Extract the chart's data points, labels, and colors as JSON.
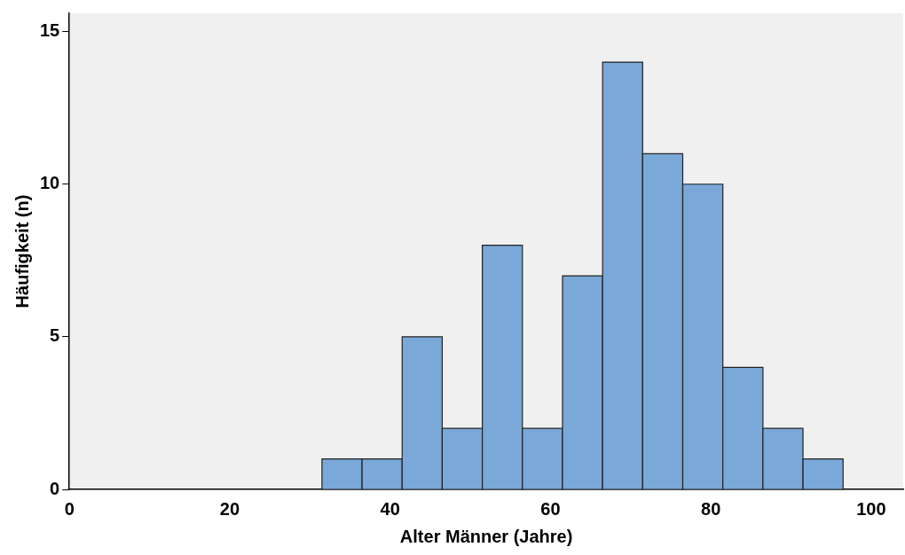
{
  "chart_data": {
    "type": "histogram",
    "xlabel": "Alter Männer (Jahre)",
    "ylabel": "Häufigkeit (n)",
    "bins": [
      31.5,
      36.5,
      41.5,
      46.5,
      51.5,
      56.5,
      61.5,
      66.5,
      71.5,
      76.5,
      81.5,
      86.5,
      91.5,
      96.5
    ],
    "values": [
      1,
      1,
      5,
      2,
      8,
      2,
      7,
      14,
      11,
      10,
      4,
      2,
      1
    ],
    "color": "#7aa8d8",
    "xlim": [
      0,
      104
    ],
    "xticks": [
      0,
      20,
      40,
      60,
      80,
      100
    ],
    "ylim": [
      0,
      15.6
    ],
    "yticks": [
      0,
      5,
      10,
      15
    ],
    "grid": false,
    "legend": false
  }
}
